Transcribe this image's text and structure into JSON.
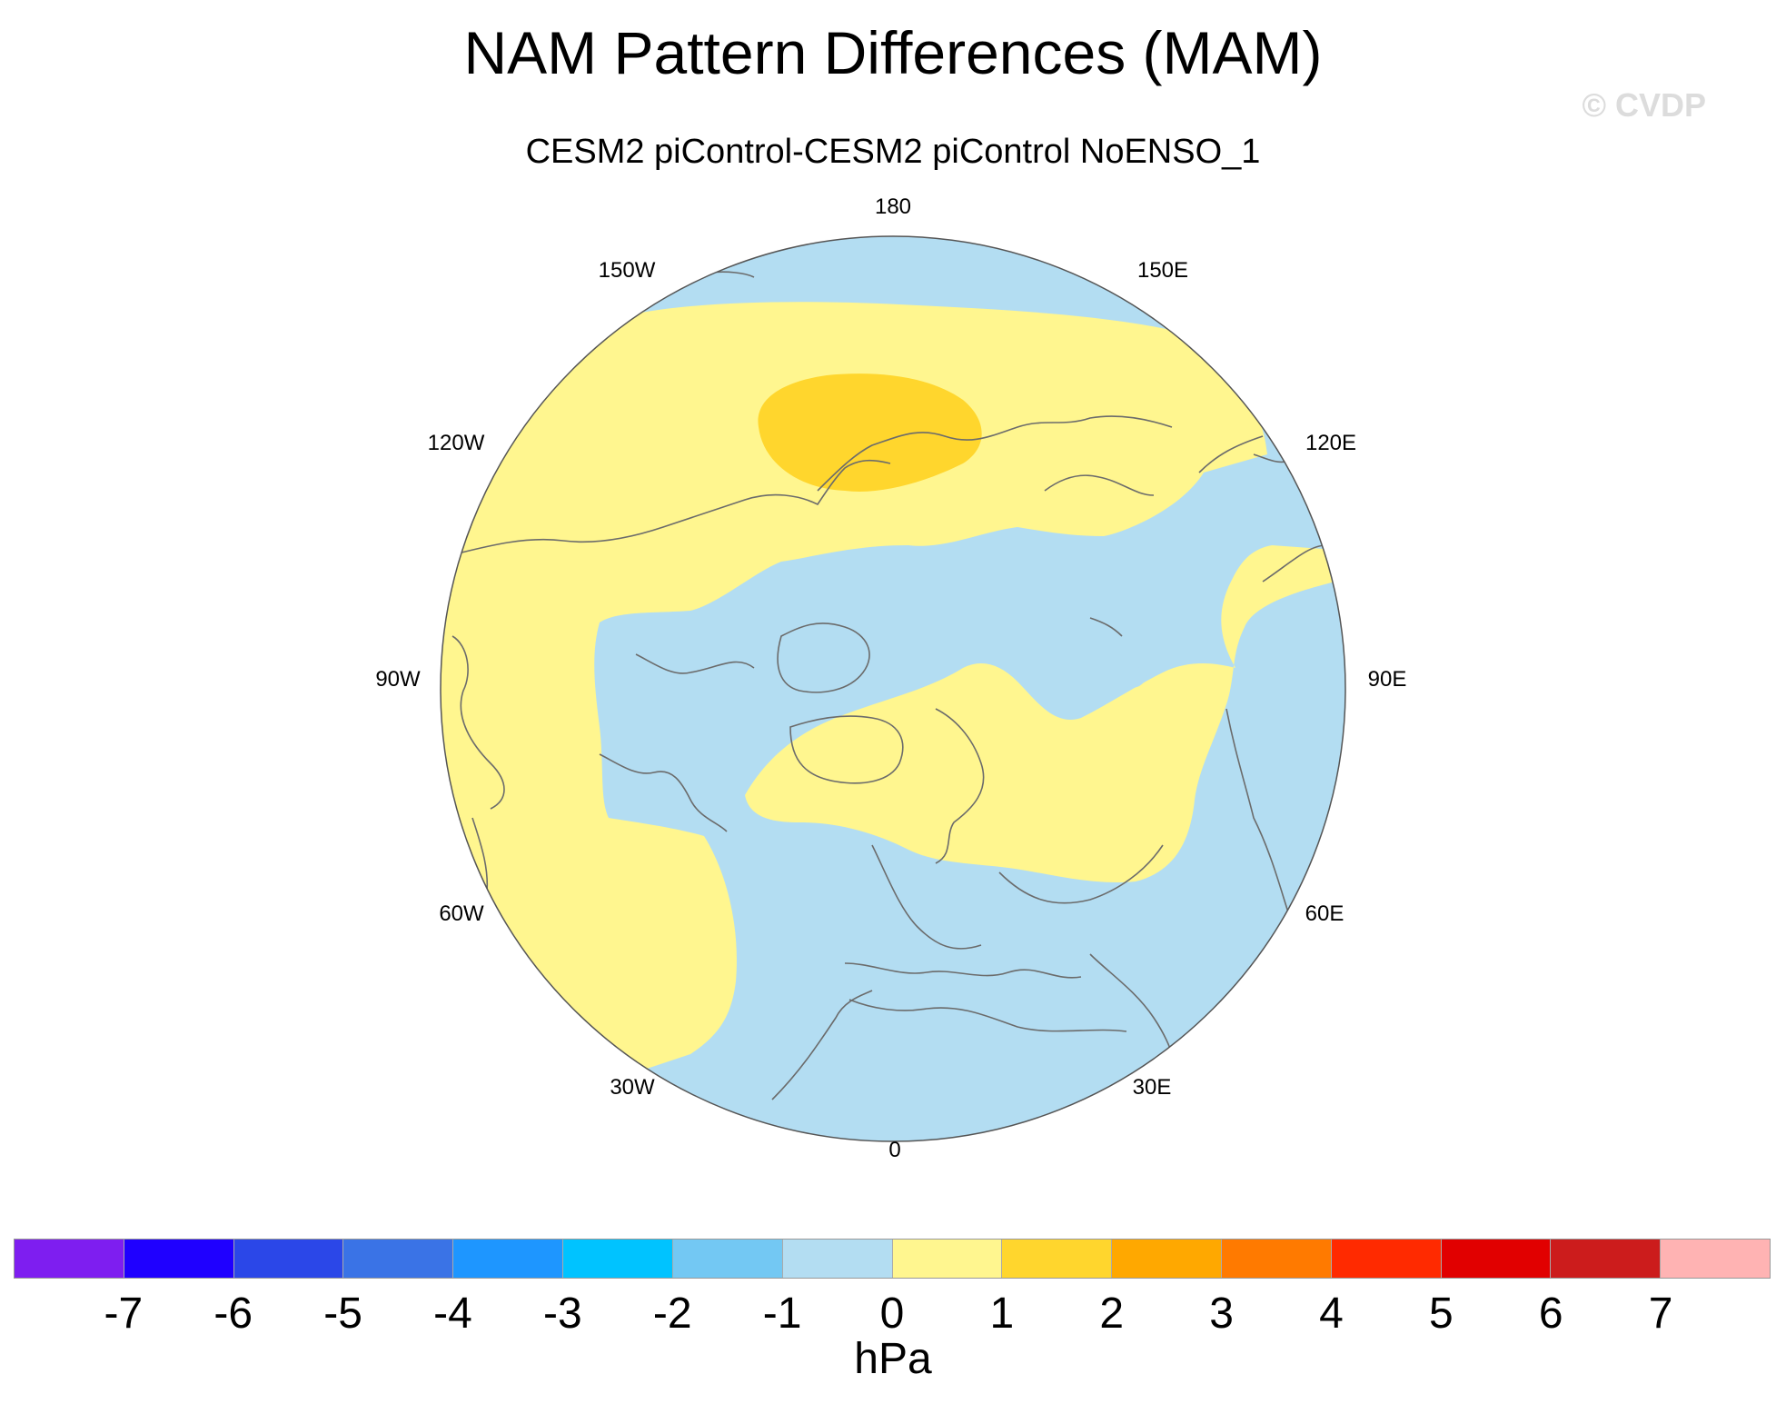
{
  "title": "NAM Pattern Differences (MAM)",
  "subtitle": "CESM2 piControl-CESM2 piControl NoENSO_1",
  "watermark": "© CVDP",
  "longitude_labels": {
    "lon_180": "180",
    "lon_150e": "150E",
    "lon_120e": "120E",
    "lon_90e": "90E",
    "lon_60e": "60E",
    "lon_30e": "30E",
    "lon_0": "0",
    "lon_30w": "30W",
    "lon_60w": "60W",
    "lon_90w": "90W",
    "lon_120w": "120W",
    "lon_150w": "150W"
  },
  "colorbar": {
    "colors": [
      "#7e1ef0",
      "#1f00ff",
      "#2b47e8",
      "#3a73e6",
      "#1e96ff",
      "#00c3ff",
      "#73c8f3",
      "#b3ddf2",
      "#fff68f",
      "#ffd62d",
      "#ffa800",
      "#ff7a00",
      "#ff2a00",
      "#e10000",
      "#cc1c1c",
      "#ffb3b3"
    ],
    "ticks": [
      "-7",
      "-6",
      "-5",
      "-4",
      "-3",
      "-2",
      "-1",
      "0",
      "1",
      "2",
      "3",
      "4",
      "5",
      "6",
      "7"
    ],
    "units": "hPa"
  },
  "map": {
    "projection": "north-polar-stereographic",
    "negative_fill": "#b3ddf2",
    "positive_fill": "#fff68f",
    "strong_positive_fill": "#ffd62d",
    "coast_color": "#6b6b6b",
    "border_color": "#555555"
  }
}
